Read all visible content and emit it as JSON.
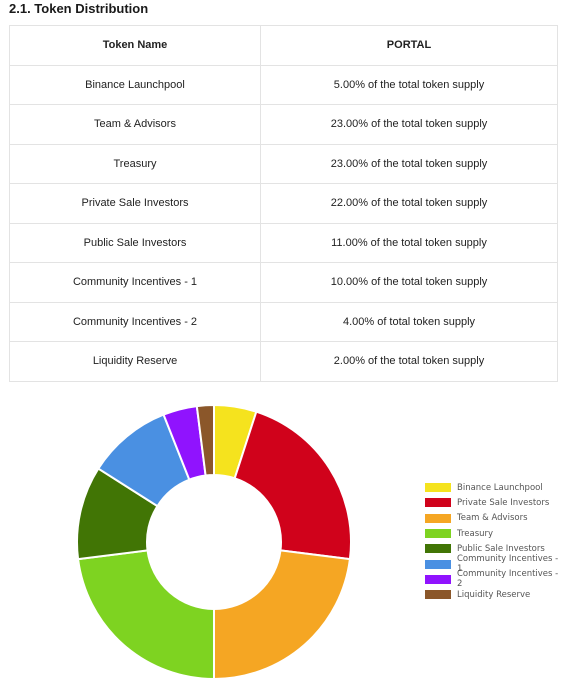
{
  "section": {
    "title": "2.1. Token Distribution"
  },
  "table": {
    "headers": [
      "Token Name",
      "PORTAL"
    ],
    "rows": [
      {
        "name": "Binance Launchpool",
        "value": "5.00% of the total token supply"
      },
      {
        "name": "Team & Advisors",
        "value": "23.00% of the total token supply"
      },
      {
        "name": "Treasury",
        "value": "23.00% of the total token supply"
      },
      {
        "name": "Private Sale Investors",
        "value": "22.00% of the total token supply"
      },
      {
        "name": "Public Sale Investors",
        "value": "11.00% of the total token supply"
      },
      {
        "name": "Community Incentives - 1",
        "value": "10.00% of the total token supply"
      },
      {
        "name": "Community Incentives - 2",
        "value": "4.00% of total token supply"
      },
      {
        "name": "Liquidity Reserve",
        "value": "2.00% of the total token supply"
      }
    ]
  },
  "chart_data": {
    "type": "pie",
    "style": "donut",
    "legend_position": "right",
    "title": "",
    "categories": [
      "Binance Launchpool",
      "Private Sale Investors",
      "Team & Advisors",
      "Treasury",
      "Public Sale Investors",
      "Community Incentives - 1",
      "Community Incentives - 2",
      "Liquidity Reserve"
    ],
    "values": [
      5,
      22,
      23,
      23,
      11,
      10,
      4,
      2
    ],
    "colors": [
      "#f5e31e",
      "#d0021b",
      "#f5a623",
      "#7ed321",
      "#417505",
      "#4a90e2",
      "#9013fe",
      "#8b572a"
    ]
  }
}
